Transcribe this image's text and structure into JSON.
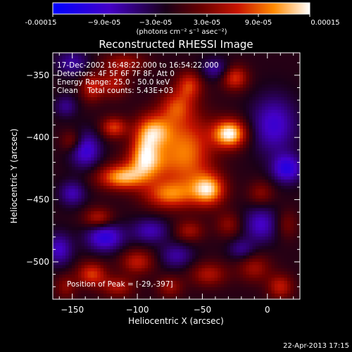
{
  "chart_data": {
    "type": "heatmap",
    "title": "Reconstructed RHESSI Image",
    "xlabel": "Heliocentric X (arcsec)",
    "ylabel": "Heliocentric Y (arcsec)",
    "xlim": [
      -165,
      25
    ],
    "ylim": [
      -530,
      -332
    ],
    "x_ticks": [
      -150,
      -100,
      -50,
      0
    ],
    "y_ticks": [
      -350,
      -400,
      -450,
      -500
    ],
    "x_tick_labels": [
      "−150",
      "−100",
      "−50",
      "0"
    ],
    "y_tick_labels": [
      "−350",
      "−400",
      "−450",
      "−500"
    ],
    "colorbar": {
      "range": [
        -0.00015,
        0.00015
      ],
      "tick_labels": [
        "-0.00015",
        "−9.0e-05",
        "−3.0e-05",
        "3.0e-05",
        "9.0e-05",
        "0.00015"
      ],
      "units": "(photons cm⁻² s⁻¹ asec⁻²)",
      "colors": [
        "#0000ff",
        "#4400c8",
        "#1a0018",
        "#6a0000",
        "#c81400",
        "#ff8a00",
        "#ffffff"
      ]
    },
    "annotations": {
      "time": "17-Dec-2002 16:48:22.000 to 16:54:22.000",
      "detectors": "Detectors: 4F 5F 6F 7F 8F, Att 0",
      "energy": "Energy Range: 25.0 - 50.0 keV",
      "method": "Clean    Total counts: 5.43E+03",
      "peak": "Position of Peak = [-29,-397]"
    },
    "blobs": [
      {
        "x": -29,
        "y": -397,
        "sx": 9,
        "sy": 8,
        "a": 1.0
      },
      {
        "x": -62,
        "y": -412,
        "sx": 14,
        "sy": 22,
        "a": 0.68
      },
      {
        "x": -87,
        "y": -395,
        "sx": 10,
        "sy": 10,
        "a": 0.72
      },
      {
        "x": -92,
        "y": -420,
        "sx": 12,
        "sy": 10,
        "a": 0.6
      },
      {
        "x": -112,
        "y": -432,
        "sx": 13,
        "sy": 7,
        "a": 0.78
      },
      {
        "x": -76,
        "y": -446,
        "sx": 14,
        "sy": 8,
        "a": 0.6
      },
      {
        "x": -45,
        "y": -442,
        "sx": 9,
        "sy": 9,
        "a": 0.8
      },
      {
        "x": -118,
        "y": -392,
        "sx": 7,
        "sy": 6,
        "a": 0.55
      },
      {
        "x": -118,
        "y": -357,
        "sx": 8,
        "sy": 8,
        "a": 0.4
      },
      {
        "x": -60,
        "y": -358,
        "sx": 7,
        "sy": 8,
        "a": 0.5
      },
      {
        "x": -25,
        "y": -352,
        "sx": 7,
        "sy": 7,
        "a": 0.55
      },
      {
        "x": -70,
        "y": -375,
        "sx": 9,
        "sy": 9,
        "a": 0.45
      },
      {
        "x": -135,
        "y": -360,
        "sx": 6,
        "sy": 8,
        "a": 0.45
      },
      {
        "x": -150,
        "y": -403,
        "sx": 6,
        "sy": 6,
        "a": 0.35
      },
      {
        "x": -130,
        "y": -465,
        "sx": 8,
        "sy": 6,
        "a": 0.45
      },
      {
        "x": -60,
        "y": -475,
        "sx": 8,
        "sy": 6,
        "a": 0.35
      },
      {
        "x": -30,
        "y": -470,
        "sx": 7,
        "sy": 7,
        "a": 0.3
      },
      {
        "x": -5,
        "y": -445,
        "sx": 7,
        "sy": 7,
        "a": 0.3
      },
      {
        "x": -135,
        "y": -510,
        "sx": 8,
        "sy": 7,
        "a": 0.55
      },
      {
        "x": -100,
        "y": -500,
        "sx": 9,
        "sy": 7,
        "a": 0.45
      },
      {
        "x": -115,
        "y": -520,
        "sx": 9,
        "sy": 6,
        "a": 0.4
      },
      {
        "x": -45,
        "y": -510,
        "sx": 10,
        "sy": 7,
        "a": 0.4
      },
      {
        "x": -10,
        "y": -505,
        "sx": 9,
        "sy": 8,
        "a": 0.35
      },
      {
        "x": 10,
        "y": -520,
        "sx": 7,
        "sy": 7,
        "a": 0.45
      },
      {
        "x": -95,
        "y": -410,
        "sx": 7,
        "sy": 12,
        "a": 0.4
      },
      {
        "x": -110,
        "y": -340,
        "sx": 12,
        "sy": 6,
        "a": 0.35
      },
      {
        "x": -155,
        "y": -520,
        "sx": 6,
        "sy": 7,
        "a": 0.3
      },
      {
        "x": 15,
        "y": -470,
        "sx": 6,
        "sy": 8,
        "a": 0.25
      },
      {
        "x": -75,
        "y": -520,
        "sx": 7,
        "sy": 6,
        "a": 0.35
      },
      {
        "x": -150,
        "y": -445,
        "sx": 7,
        "sy": 7,
        "a": -0.4
      },
      {
        "x": -140,
        "y": -410,
        "sx": 8,
        "sy": 10,
        "a": -0.55
      },
      {
        "x": -125,
        "y": -480,
        "sx": 10,
        "sy": 8,
        "a": -0.6
      },
      {
        "x": 5,
        "y": -390,
        "sx": 12,
        "sy": 16,
        "a": -0.5
      },
      {
        "x": -5,
        "y": -470,
        "sx": 9,
        "sy": 10,
        "a": -0.45
      },
      {
        "x": -150,
        "y": -340,
        "sx": 9,
        "sy": 7,
        "a": -0.35
      },
      {
        "x": 15,
        "y": -425,
        "sx": 8,
        "sy": 8,
        "a": -0.6
      },
      {
        "x": -90,
        "y": -475,
        "sx": 10,
        "sy": 7,
        "a": -0.4
      },
      {
        "x": -160,
        "y": -490,
        "sx": 7,
        "sy": 9,
        "a": -0.45
      },
      {
        "x": -40,
        "y": -345,
        "sx": 8,
        "sy": 6,
        "a": -0.35
      },
      {
        "x": -70,
        "y": -495,
        "sx": 9,
        "sy": 7,
        "a": -0.35
      },
      {
        "x": -155,
        "y": -375,
        "sx": 6,
        "sy": 6,
        "a": -0.3
      },
      {
        "x": -20,
        "y": -490,
        "sx": 7,
        "sy": 6,
        "a": -0.3
      }
    ]
  },
  "footer": {
    "timestamp": "22-Apr-2013 17:15"
  }
}
